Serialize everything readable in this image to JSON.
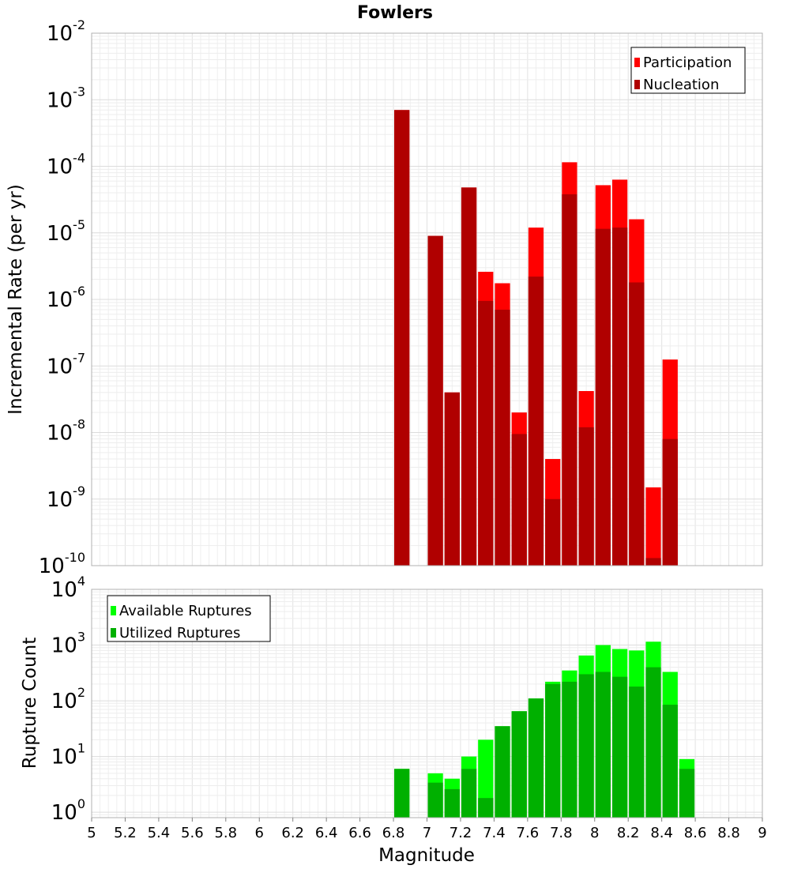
{
  "chart_data": [
    {
      "type": "bar",
      "title": "Fowlers",
      "ylabel": "Incremental Rate (per yr)",
      "xlabel": "",
      "yscale": "log",
      "ylim": [
        1e-10,
        0.01
      ],
      "xlim": [
        5,
        9
      ],
      "grid": true,
      "legend_position": "top-right",
      "bar_width": 0.1,
      "x": [
        6.85,
        7.05,
        7.15,
        7.25,
        7.35,
        7.45,
        7.55,
        7.65,
        7.75,
        7.85,
        7.95,
        8.05,
        8.15,
        8.25,
        8.35,
        8.45
      ],
      "series": [
        {
          "name": "Participation",
          "color": "#ff0000",
          "values": [
            0.0007,
            9e-06,
            4e-08,
            4.8e-05,
            2.6e-06,
            1.75e-06,
            2e-08,
            1.2e-05,
            4e-09,
            0.000115,
            4.2e-08,
            5.2e-05,
            6.3e-05,
            1.6e-05,
            1.5e-09,
            1.25e-07
          ]
        },
        {
          "name": "Nucleation",
          "color": "#b00000",
          "values": [
            0.0007,
            9e-06,
            4e-08,
            4.8e-05,
            9.5e-07,
            7e-07,
            9.5e-09,
            2.2e-06,
            1e-09,
            3.8e-05,
            1.2e-08,
            1.15e-05,
            1.2e-05,
            1.8e-06,
            1.3e-10,
            8e-09
          ]
        }
      ],
      "y_ticks": [
        {
          "base": "10",
          "exp": "-10"
        },
        {
          "base": "10",
          "exp": "-9"
        },
        {
          "base": "10",
          "exp": "-8"
        },
        {
          "base": "10",
          "exp": "-7"
        },
        {
          "base": "10",
          "exp": "-6"
        },
        {
          "base": "10",
          "exp": "-5"
        },
        {
          "base": "10",
          "exp": "-4"
        },
        {
          "base": "10",
          "exp": "-3"
        },
        {
          "base": "10",
          "exp": "-2"
        }
      ]
    },
    {
      "type": "bar",
      "title": "",
      "ylabel": "Rupture Count",
      "xlabel": "Magnitude",
      "yscale": "log",
      "ylim": [
        0.8,
        10000
      ],
      "xlim": [
        5,
        9
      ],
      "grid": true,
      "legend_position": "top-left",
      "bar_width": 0.1,
      "x": [
        6.85,
        7.05,
        7.15,
        7.25,
        7.35,
        7.45,
        7.55,
        7.65,
        7.75,
        7.85,
        7.95,
        8.05,
        8.15,
        8.25,
        8.35,
        8.45,
        8.55
      ],
      "series": [
        {
          "name": "Available Ruptures",
          "color": "#00ff00",
          "values": [
            6,
            5,
            4,
            10,
            20,
            35,
            65,
            110,
            220,
            350,
            650,
            1000,
            850,
            800,
            1150,
            330,
            9
          ]
        },
        {
          "name": "Utilized Ruptures",
          "color": "#00b000",
          "values": [
            6,
            3.4,
            2.6,
            6,
            1.8,
            35,
            65,
            110,
            200,
            220,
            300,
            330,
            270,
            180,
            400,
            85,
            6
          ]
        }
      ],
      "y_ticks": [
        {
          "base": "10",
          "exp": "0"
        },
        {
          "base": "10",
          "exp": "1"
        },
        {
          "base": "10",
          "exp": "2"
        },
        {
          "base": "10",
          "exp": "3"
        },
        {
          "base": "10",
          "exp": "4"
        }
      ],
      "x_tick_labels": [
        "5",
        "5.2",
        "5.4",
        "5.6",
        "5.8",
        "6",
        "6.2",
        "6.4",
        "6.6",
        "6.8",
        "7",
        "7.2",
        "7.4",
        "7.6",
        "7.8",
        "8",
        "8.2",
        "8.4",
        "8.6",
        "8.8",
        "9"
      ]
    }
  ]
}
